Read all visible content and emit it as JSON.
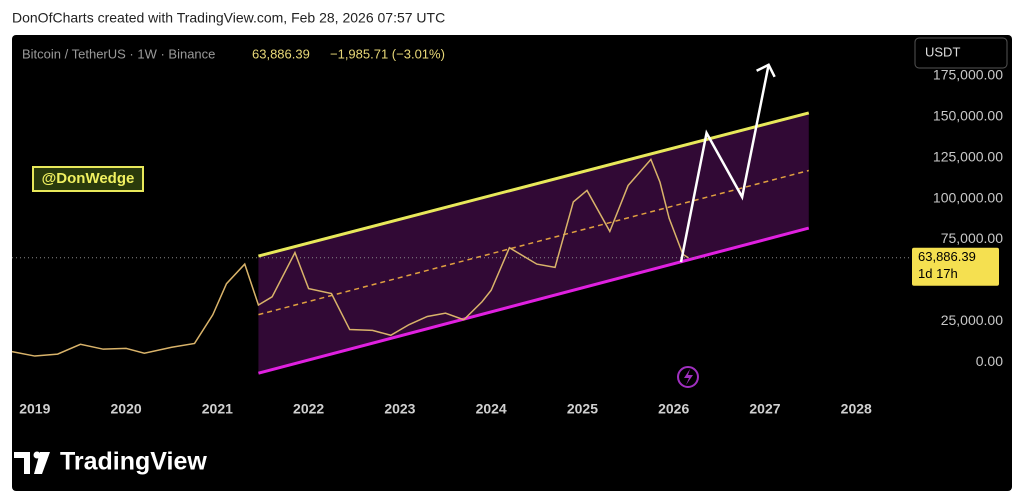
{
  "chart_data": {
    "type": "line",
    "attribution": "DonOfCharts created with TradingView.com, Feb 28, 2026 07:57 UTC",
    "symbol": "Bitcoin / TetherUS · 1W · Binance",
    "last_price": {
      "value": 63886.39,
      "label": "63,886.39"
    },
    "change": "−1,985.71 (−3.01%)",
    "countdown": "1d 17h",
    "currency": "USDT",
    "annotation": "@DonWedge",
    "branding": "TradingView",
    "x": [
      2018.75,
      2019.0,
      2019.25,
      2019.5,
      2019.75,
      2020.0,
      2020.2,
      2020.5,
      2020.75,
      2020.95,
      2021.1,
      2021.3,
      2021.45,
      2021.6,
      2021.85,
      2022.0,
      2022.25,
      2022.45,
      2022.7,
      2022.9,
      2023.1,
      2023.3,
      2023.5,
      2023.7,
      2023.9,
      2024.0,
      2024.2,
      2024.5,
      2024.7,
      2024.9,
      2025.05,
      2025.3,
      2025.5,
      2025.75,
      2025.85,
      2025.95,
      2026.1,
      2026.16
    ],
    "series": [
      {
        "color": "#d9b36a",
        "values": [
          6500,
          3800,
          5000,
          11000,
          8000,
          8500,
          5500,
          9200,
          11500,
          29000,
          48000,
          60000,
          35000,
          40000,
          67000,
          45000,
          42000,
          20000,
          19500,
          16500,
          23000,
          28000,
          30000,
          26000,
          37000,
          44000,
          70000,
          60000,
          58000,
          98000,
          105000,
          80000,
          108000,
          124000,
          110000,
          88000,
          66000,
          63886.39
        ]
      }
    ],
    "channel": {
      "x": [
        2021.45,
        2027.48
      ],
      "upper": [
        64900,
        152400
      ],
      "middle": [
        29100,
        117200
      ],
      "lower": [
        -6700,
        82000
      ],
      "upper_color": "#e8e85a",
      "middle_color": "#e0a040",
      "lower_color": "#e020e0",
      "fill": "#3a0a3e"
    },
    "projection": {
      "x": [
        2026.08,
        2026.36,
        2026.75,
        2027.04
      ],
      "values": [
        61200,
        140100,
        101000,
        181800
      ],
      "color": "#ffffff"
    },
    "xlim": [
      2018.75,
      2028.6
    ],
    "xticks": [
      2019,
      2020,
      2021,
      2022,
      2023,
      2024,
      2025,
      2026,
      2027,
      2028
    ],
    "ylim": [
      -20000,
      200000
    ],
    "yticks": [
      {
        "value": 0,
        "label": "0.00"
      },
      {
        "value": 25000,
        "label": "25,000.00"
      },
      {
        "value": 75000,
        "label": "75,000.00"
      },
      {
        "value": 100000,
        "label": "100,000.00"
      },
      {
        "value": 125000,
        "label": "125,000.00"
      },
      {
        "value": 150000,
        "label": "150,000.00"
      },
      {
        "value": 175000,
        "label": "175,000.00"
      }
    ]
  }
}
